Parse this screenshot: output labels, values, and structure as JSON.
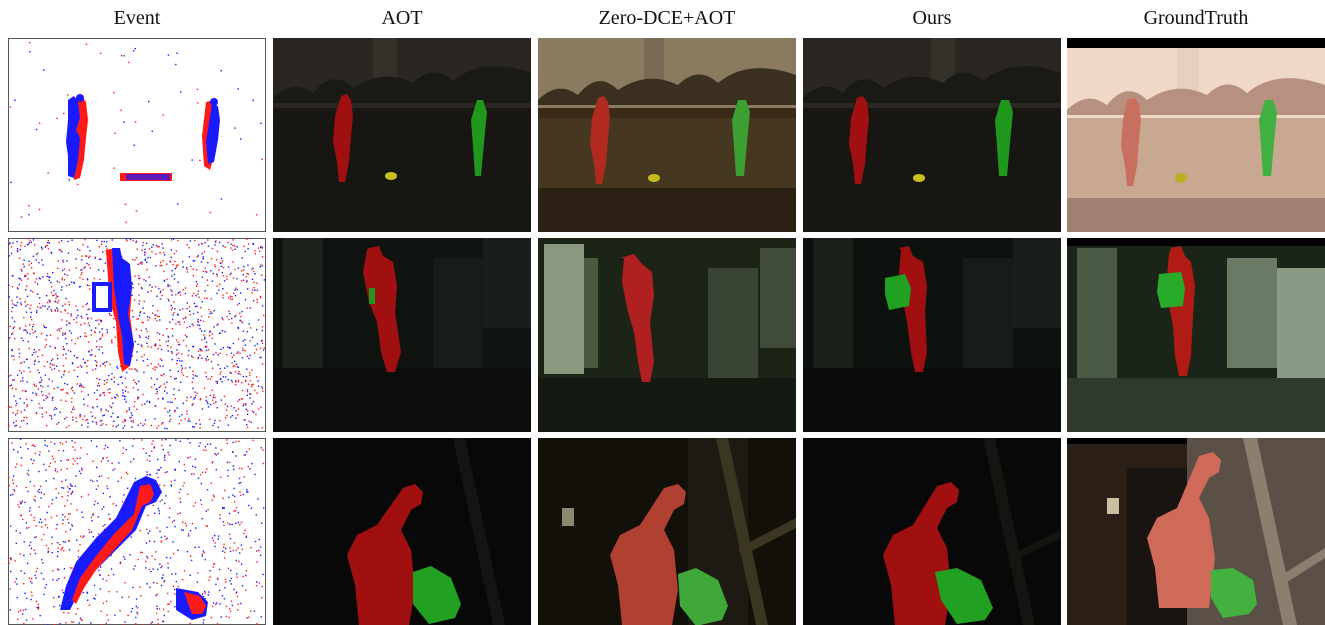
{
  "figure": {
    "columns": [
      {
        "id": "event",
        "label": "Event"
      },
      {
        "id": "aot",
        "label": "AOT"
      },
      {
        "id": "zero_dce_aot",
        "label": "Zero-DCE+AOT"
      },
      {
        "id": "ours",
        "label": "Ours"
      },
      {
        "id": "ground_truth",
        "label": "GroundTruth"
      }
    ],
    "rows": [
      {
        "id": "row-1",
        "scene": "outdoor-soccer"
      },
      {
        "id": "row-2",
        "scene": "office-corridor"
      },
      {
        "id": "row-3",
        "scene": "dark-room-chair"
      }
    ],
    "colors": {
      "event_positive": "#1a1aff",
      "event_negative": "#ff1a1a",
      "mask_red": "#b01010",
      "mask_green": "#22a022",
      "mask_yellow": "#c8c020"
    }
  }
}
